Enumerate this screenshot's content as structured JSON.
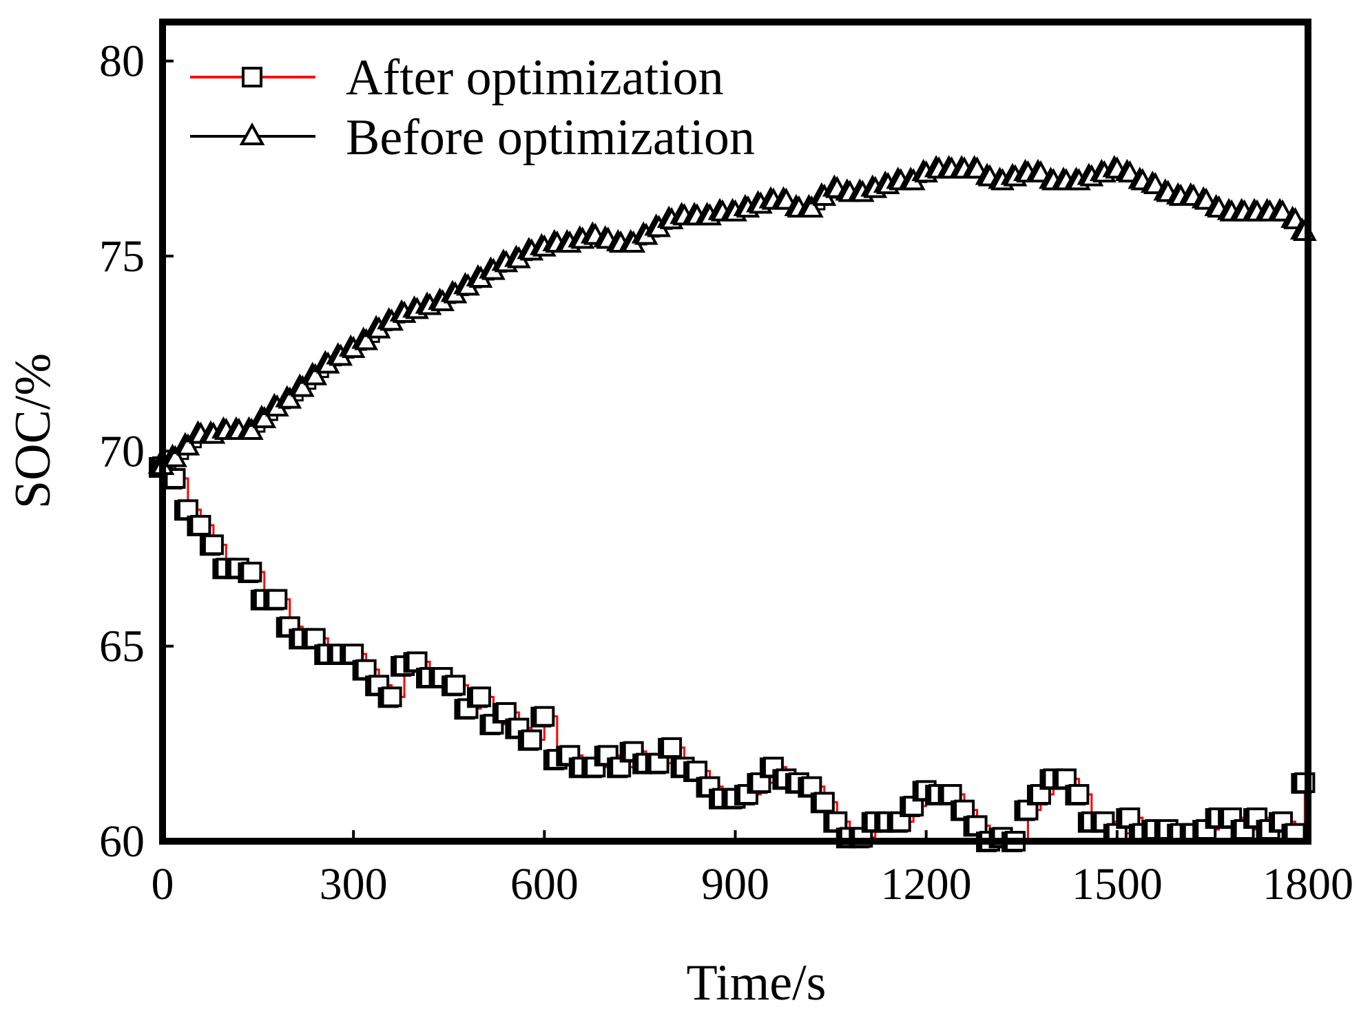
{
  "chart_data": {
    "type": "line",
    "title": "",
    "xlabel": "Time/s",
    "ylabel": "SOC/%",
    "xlim": [
      0,
      1800
    ],
    "ylim": [
      60,
      81
    ],
    "xticks": [
      0,
      300,
      600,
      900,
      1200,
      1500,
      1800
    ],
    "yticks": [
      60,
      65,
      70,
      75,
      80
    ],
    "grid": false,
    "legend_position": "top-left",
    "series": [
      {
        "name": "After optimization",
        "line_color": "#ff0000",
        "marker": "square",
        "x": [
          0,
          20,
          40,
          60,
          80,
          100,
          120,
          140,
          160,
          180,
          200,
          220,
          240,
          260,
          280,
          300,
          320,
          340,
          360,
          380,
          400,
          420,
          440,
          460,
          480,
          500,
          520,
          540,
          560,
          580,
          600,
          620,
          640,
          660,
          680,
          700,
          720,
          740,
          760,
          780,
          800,
          820,
          840,
          860,
          880,
          900,
          920,
          940,
          960,
          980,
          1000,
          1020,
          1040,
          1060,
          1080,
          1100,
          1120,
          1140,
          1160,
          1180,
          1200,
          1220,
          1240,
          1260,
          1280,
          1300,
          1320,
          1340,
          1360,
          1380,
          1400,
          1420,
          1440,
          1460,
          1480,
          1500,
          1520,
          1540,
          1560,
          1580,
          1600,
          1620,
          1640,
          1660,
          1680,
          1700,
          1720,
          1740,
          1760,
          1780,
          1795
        ],
        "values": [
          69.6,
          69.3,
          68.5,
          68.1,
          67.6,
          67.0,
          67.0,
          66.9,
          66.2,
          66.2,
          65.5,
          65.2,
          65.2,
          64.8,
          64.8,
          64.8,
          64.4,
          64.0,
          63.7,
          64.5,
          64.6,
          64.2,
          64.2,
          64.0,
          63.4,
          63.7,
          63.0,
          63.3,
          62.9,
          62.6,
          63.2,
          62.1,
          62.2,
          61.9,
          61.9,
          62.2,
          61.9,
          62.3,
          62.0,
          62.0,
          62.4,
          61.9,
          61.8,
          61.4,
          61.1,
          61.1,
          61.2,
          61.5,
          61.9,
          61.6,
          61.5,
          61.4,
          61.0,
          60.5,
          60.1,
          60.1,
          60.5,
          60.5,
          60.5,
          60.9,
          61.3,
          61.2,
          61.2,
          60.8,
          60.4,
          60.0,
          60.1,
          60.0,
          60.8,
          61.2,
          61.6,
          61.6,
          61.2,
          60.5,
          60.5,
          60.2,
          60.6,
          60.2,
          60.3,
          60.3,
          60.2,
          60.2,
          60.3,
          60.6,
          60.6,
          60.3,
          60.6,
          60.3,
          60.5,
          60.2,
          61.5
        ]
      },
      {
        "name": "Before optimization",
        "line_color": "#000000",
        "marker": "triangle",
        "x": [
          0,
          20,
          40,
          60,
          80,
          100,
          120,
          140,
          160,
          180,
          200,
          220,
          240,
          260,
          280,
          300,
          320,
          340,
          360,
          380,
          400,
          420,
          440,
          460,
          480,
          500,
          520,
          540,
          560,
          580,
          600,
          620,
          640,
          660,
          680,
          700,
          720,
          740,
          760,
          780,
          800,
          820,
          840,
          860,
          880,
          900,
          920,
          940,
          960,
          980,
          1000,
          1020,
          1040,
          1060,
          1080,
          1100,
          1120,
          1140,
          1160,
          1180,
          1200,
          1220,
          1240,
          1260,
          1280,
          1300,
          1320,
          1340,
          1360,
          1380,
          1400,
          1420,
          1440,
          1460,
          1480,
          1500,
          1520,
          1540,
          1560,
          1580,
          1600,
          1620,
          1640,
          1660,
          1680,
          1700,
          1720,
          1740,
          1760,
          1780,
          1795
        ],
        "values": [
          69.6,
          69.8,
          70.1,
          70.4,
          70.4,
          70.5,
          70.5,
          70.5,
          70.8,
          71.1,
          71.3,
          71.6,
          71.9,
          72.2,
          72.4,
          72.6,
          72.8,
          73.1,
          73.3,
          73.5,
          73.6,
          73.7,
          73.8,
          74.0,
          74.2,
          74.4,
          74.6,
          74.8,
          74.9,
          75.1,
          75.2,
          75.3,
          75.3,
          75.4,
          75.5,
          75.4,
          75.3,
          75.3,
          75.5,
          75.7,
          75.9,
          76.0,
          76.0,
          76.0,
          76.1,
          76.1,
          76.2,
          76.3,
          76.4,
          76.4,
          76.2,
          76.2,
          76.5,
          76.7,
          76.6,
          76.6,
          76.7,
          76.8,
          76.9,
          76.9,
          77.1,
          77.2,
          77.2,
          77.2,
          77.2,
          77.0,
          76.9,
          77.0,
          77.1,
          77.1,
          76.9,
          76.9,
          76.9,
          77.0,
          77.1,
          77.2,
          77.1,
          76.9,
          76.8,
          76.6,
          76.5,
          76.5,
          76.4,
          76.2,
          76.1,
          76.1,
          76.1,
          76.1,
          76.1,
          75.9,
          75.6
        ]
      }
    ]
  }
}
